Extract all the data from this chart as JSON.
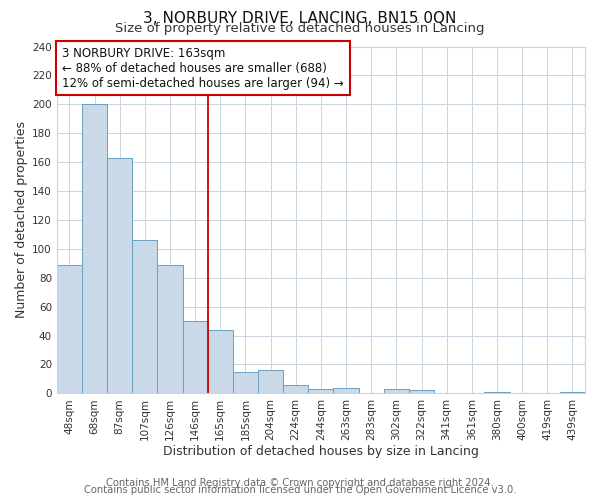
{
  "title": "3, NORBURY DRIVE, LANCING, BN15 0QN",
  "subtitle": "Size of property relative to detached houses in Lancing",
  "xlabel": "Distribution of detached houses by size in Lancing",
  "ylabel": "Number of detached properties",
  "bin_labels": [
    "48sqm",
    "68sqm",
    "87sqm",
    "107sqm",
    "126sqm",
    "146sqm",
    "165sqm",
    "185sqm",
    "204sqm",
    "224sqm",
    "244sqm",
    "263sqm",
    "283sqm",
    "302sqm",
    "322sqm",
    "341sqm",
    "361sqm",
    "380sqm",
    "400sqm",
    "419sqm",
    "439sqm"
  ],
  "bar_values": [
    89,
    200,
    163,
    106,
    89,
    50,
    44,
    15,
    16,
    6,
    3,
    4,
    0,
    3,
    2,
    0,
    0,
    1,
    0,
    0,
    1
  ],
  "bar_color": "#c9d9e8",
  "bar_edge_color": "#6a9fc0",
  "vline_x_index": 6,
  "vline_color": "#cc0000",
  "ylim": [
    0,
    240
  ],
  "yticks": [
    0,
    20,
    40,
    60,
    80,
    100,
    120,
    140,
    160,
    180,
    200,
    220,
    240
  ],
  "annotation_line1": "3 NORBURY DRIVE: 163sqm",
  "annotation_line2": "← 88% of detached houses are smaller (688)",
  "annotation_line3": "12% of semi-detached houses are larger (94) →",
  "annotation_box_color": "#ffffff",
  "annotation_box_edge_color": "#cc0000",
  "footer_line1": "Contains HM Land Registry data © Crown copyright and database right 2024.",
  "footer_line2": "Contains public sector information licensed under the Open Government Licence v3.0.",
  "background_color": "#ffffff",
  "plot_background_color": "#ffffff",
  "grid_color": "#c8d4e0",
  "title_fontsize": 11,
  "subtitle_fontsize": 9.5,
  "axis_label_fontsize": 9,
  "tick_fontsize": 7.5,
  "annotation_fontsize": 8.5,
  "footer_fontsize": 7.2
}
